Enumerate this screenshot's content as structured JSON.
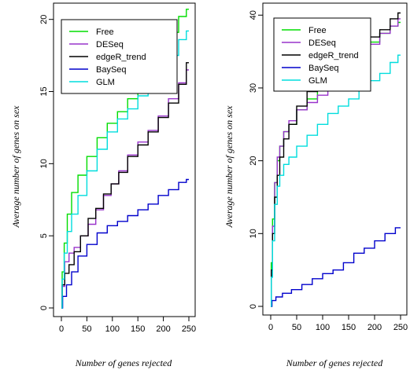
{
  "chart_data": [
    {
      "type": "line",
      "title": "",
      "xlabel": "Number of genes rejected",
      "ylabel": "Average number of genes on sex",
      "xlim": [
        0,
        250
      ],
      "ylim": [
        0,
        20.8
      ],
      "xticks": [
        "0",
        "50",
        "100",
        "150",
        "200",
        "250"
      ],
      "yticks": [
        "0",
        "5",
        "10",
        "15",
        "20"
      ],
      "legend_position": "top-left",
      "grid": false,
      "series": [
        {
          "name": "Free",
          "color": "#00dd00",
          "x": [
            0,
            3,
            8,
            15,
            25,
            40,
            60,
            80,
            100,
            120,
            140,
            160,
            180,
            200,
            220,
            240,
            250
          ],
          "y": [
            0,
            2.5,
            4.5,
            6.5,
            8,
            9.2,
            10.5,
            11.8,
            12.8,
            13.6,
            14.5,
            15.6,
            16.8,
            18,
            19.1,
            20.2,
            20.7
          ]
        },
        {
          "name": "DESeq",
          "color": "#9933cc",
          "x": [
            0,
            3,
            10,
            20,
            30,
            45,
            60,
            75,
            90,
            105,
            120,
            140,
            160,
            180,
            200,
            220,
            240,
            250
          ],
          "y": [
            0,
            1.5,
            3.2,
            3.8,
            4.2,
            5.0,
            5.8,
            6.8,
            7.8,
            8.6,
            9.5,
            10.6,
            11.5,
            12.3,
            13.3,
            14.5,
            15.6,
            16.5
          ]
        },
        {
          "name": "edgeR_trend",
          "color": "#000000",
          "x": [
            0,
            3,
            10,
            20,
            30,
            45,
            60,
            75,
            90,
            105,
            120,
            140,
            160,
            180,
            200,
            220,
            240,
            250
          ],
          "y": [
            0,
            1.6,
            2.4,
            3.0,
            3.9,
            5.0,
            6.2,
            6.9,
            7.9,
            8.6,
            9.4,
            10.5,
            11.3,
            12.2,
            13.2,
            14.2,
            15.5,
            17.0
          ]
        },
        {
          "name": "BaySeq",
          "color": "#0000cc",
          "x": [
            0,
            5,
            15,
            25,
            40,
            60,
            80,
            100,
            120,
            140,
            160,
            180,
            200,
            220,
            240,
            250
          ],
          "y": [
            0,
            0.8,
            1.6,
            2.5,
            3.6,
            4.4,
            5.2,
            5.7,
            6.0,
            6.4,
            6.8,
            7.2,
            7.8,
            8.2,
            8.7,
            8.9
          ]
        },
        {
          "name": "GLM",
          "color": "#00dddd",
          "x": [
            0,
            3,
            8,
            15,
            25,
            40,
            60,
            80,
            100,
            120,
            140,
            160,
            180,
            200,
            220,
            240,
            250
          ],
          "y": [
            0,
            2.0,
            3.8,
            5.3,
            6.5,
            7.8,
            9.5,
            11.0,
            12.2,
            13.1,
            13.8,
            14.7,
            15.6,
            16.5,
            17.5,
            18.6,
            19.2
          ]
        }
      ]
    },
    {
      "type": "line",
      "title": "",
      "xlabel": "Number of genes rejected",
      "ylabel": "Average number of genes on sex",
      "xlim": [
        0,
        250
      ],
      "ylim": [
        0,
        41
      ],
      "xticks": [
        "0",
        "50",
        "100",
        "150",
        "200",
        "250"
      ],
      "yticks": [
        "0",
        "10",
        "20",
        "30",
        "40"
      ],
      "legend_position": "top-left",
      "grid": false,
      "series": [
        {
          "name": "Free",
          "color": "#00dd00",
          "x": [
            0,
            2,
            5,
            10,
            15,
            20,
            30,
            40,
            60,
            80,
            100,
            120,
            140,
            160,
            180,
            200,
            220,
            240,
            250
          ],
          "y": [
            0,
            6,
            12,
            17,
            20,
            22,
            24,
            25,
            27,
            28.5,
            30,
            31.5,
            32.5,
            33.5,
            35,
            36.3,
            37.5,
            38.5,
            39
          ]
        },
        {
          "name": "DESeq",
          "color": "#9933cc",
          "x": [
            0,
            2,
            5,
            10,
            15,
            20,
            30,
            40,
            60,
            80,
            100,
            120,
            140,
            160,
            180,
            200,
            220,
            240,
            250
          ],
          "y": [
            0,
            5,
            11,
            17,
            20.5,
            22,
            24,
            25.5,
            27,
            28,
            29,
            30,
            31.5,
            33,
            34.5,
            36,
            37.5,
            38.5,
            39.5
          ]
        },
        {
          "name": "edgeR_trend",
          "color": "#000000",
          "x": [
            0,
            2,
            5,
            10,
            15,
            20,
            30,
            40,
            60,
            80,
            100,
            120,
            140,
            160,
            180,
            200,
            220,
            240,
            250
          ],
          "y": [
            0,
            5,
            10,
            15,
            18,
            20.5,
            23,
            25,
            27.5,
            29.5,
            31.5,
            33,
            34,
            35,
            36,
            37,
            38,
            39.5,
            40.3
          ]
        },
        {
          "name": "BaySeq",
          "color": "#0000cc",
          "x": [
            0,
            5,
            15,
            30,
            50,
            70,
            90,
            110,
            130,
            150,
            170,
            190,
            210,
            230,
            250
          ],
          "y": [
            0,
            0.8,
            1.3,
            1.8,
            2.3,
            3.0,
            3.8,
            4.5,
            5.0,
            6.0,
            7.3,
            8.0,
            9.0,
            10.0,
            10.8
          ]
        },
        {
          "name": "GLM",
          "color": "#00dddd",
          "x": [
            0,
            2,
            5,
            10,
            15,
            20,
            30,
            40,
            60,
            80,
            100,
            120,
            140,
            160,
            180,
            200,
            220,
            240,
            250
          ],
          "y": [
            0,
            4,
            9,
            14,
            16.5,
            18,
            19.5,
            20.5,
            22,
            23.5,
            25,
            26.5,
            27.5,
            28.5,
            30,
            31,
            32,
            33.5,
            34.5
          ]
        }
      ]
    }
  ]
}
